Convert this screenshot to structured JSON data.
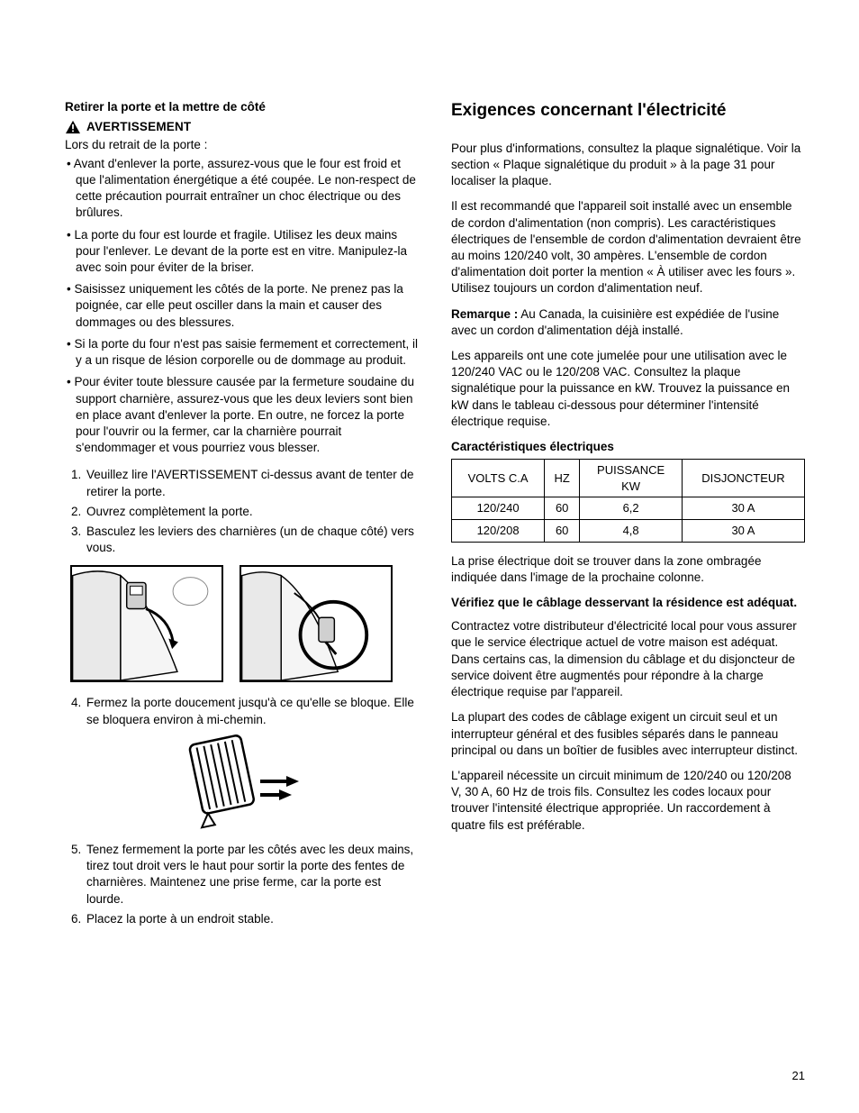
{
  "left": {
    "subhead": "Retirer la porte et la mettre de côté",
    "warning_label": "AVERTISSEMENT",
    "intro": "Lors du retrait de la porte :",
    "bullets": [
      "Avant d'enlever la porte, assurez-vous que le four est froid et que l'alimentation énergétique a été coupée. Le non-respect de cette précaution pourrait entraîner un choc électrique ou des brûlures.",
      "La porte du four est lourde et fragile. Utilisez les deux mains pour l'enlever. Le devant de la porte est en vitre. Manipulez-la avec soin pour éviter de la briser.",
      "Saisissez uniquement les côtés de la porte. Ne prenez pas la poignée, car elle peut osciller dans la main et causer des dommages ou des blessures.",
      "Si la porte du four n'est pas saisie fermement et correctement, il y a un risque de lésion corporelle ou de dommage au produit.",
      "Pour éviter toute blessure causée par la fermeture soudaine du support charnière, assurez-vous que les deux leviers sont bien en place avant d'enlever la porte. En outre, ne forcez la porte pour l'ouvrir ou la fermer, car la charnière pourrait s'endommager et vous pourriez vous blesser."
    ],
    "steps_a": [
      "Veuillez lire l'AVERTISSEMENT ci-dessus avant de tenter de retirer la porte.",
      "Ouvrez complètement la porte.",
      "Basculez les leviers des charnières (un de chaque côté) vers vous."
    ],
    "step4_text": "Fermez la porte doucement jusqu'à ce qu'elle se bloque. Elle se bloquera environ à mi-chemin.",
    "steps_b": [
      "Tenez fermement la porte par les côtés avec les deux mains, tirez tout droit vers le haut pour sortir la porte des fentes de charnières. Maintenez une prise ferme, car la porte est lourde.",
      "Placez la porte à un endroit stable."
    ]
  },
  "right": {
    "title": "Exigences concernant l'électricité",
    "p1": "Pour plus d'informations, consultez la plaque signalétique. Voir la section « Plaque signalétique du produit » à la page 31 pour localiser la plaque.",
    "p2": "Il est recommandé que l'appareil soit installé avec un ensemble de cordon d'alimentation (non compris). Les caractéristiques électriques de l'ensemble de cordon d'alimentation devraient être au moins 120/240 volt, 30 ampères. L'ensemble de cordon d'alimentation doit porter la mention « À utiliser avec les fours ». Utilisez toujours un cordon d'alimentation neuf.",
    "note_label": "Remarque :",
    "note_text": " Au Canada, la cuisinière est expédiée de l'usine avec un cordon d'alimentation déjà installé.",
    "p3": "Les appareils ont une cote jumelée pour une utilisation avec le 120/240 VAC ou le 120/208 VAC. Consultez la plaque signalétique pour la puissance en kW. Trouvez la puissance en kW dans le tableau ci-dessous pour déterminer l'intensité électrique requise.",
    "table_heading": "Caractéristiques électriques",
    "table": {
      "headers": [
        "VOLTS C.A",
        "HZ",
        "PUISSANCE KW",
        "DISJONCTEUR"
      ],
      "rows": [
        [
          "120/240",
          "60",
          "6,2",
          "30 A"
        ],
        [
          "120/208",
          "60",
          "4,8",
          "30 A"
        ]
      ]
    },
    "p4": "La prise électrique doit se trouver dans la zone ombragée indiquée dans l'image de la prochaine colonne.",
    "subhead2": "Vérifiez que le câblage desservant la résidence est adéquat.",
    "p5": "Contractez votre distributeur d'électricité local pour vous assurer que le service électrique actuel de votre maison est adéquat. Dans certains cas, la dimension du câblage et du disjoncteur de service doivent être augmentés pour répondre à la charge électrique requise par l'appareil.",
    "p6": "La plupart des codes de câblage exigent un circuit seul et un interrupteur général et des fusibles séparés dans le panneau principal ou dans un boîtier de fusibles avec interrupteur distinct.",
    "p7": "L'appareil nécessite un circuit minimum de 120/240 ou 120/208 V, 30 A, 60 Hz de trois fils. Consultez les codes locaux pour trouver l'intensité électrique appropriée. Un raccordement à quatre fils est préférable."
  },
  "page_number": "21"
}
